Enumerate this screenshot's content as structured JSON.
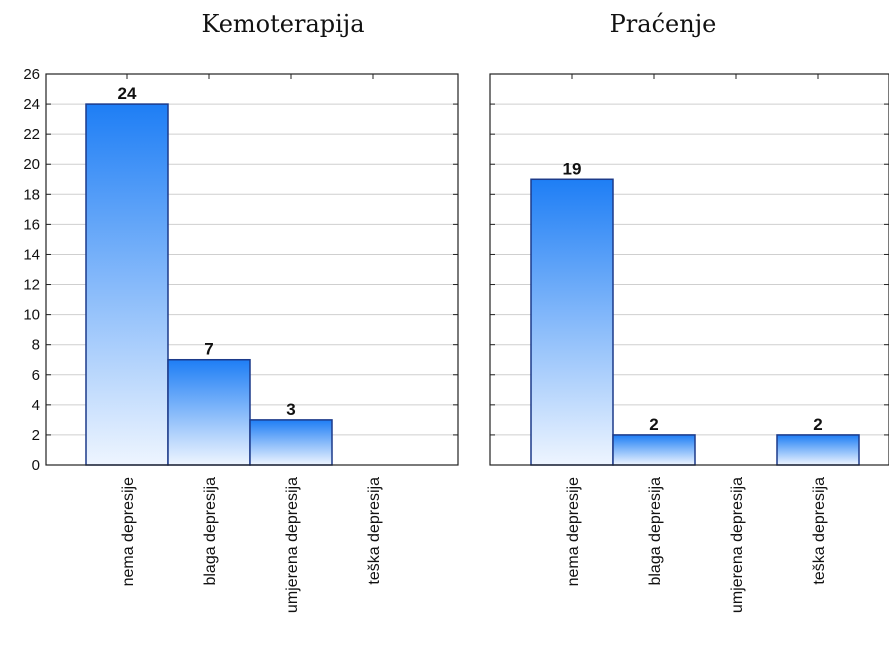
{
  "chart_data": [
    {
      "type": "bar",
      "title": "Kemoterapija",
      "categories": [
        "nema depresije",
        "blaga depresija",
        "umjerena depresija",
        "teška depresija"
      ],
      "values": [
        24,
        7,
        3,
        0
      ],
      "data_labels": [
        "24",
        "7",
        "3",
        ""
      ],
      "ylim": [
        0,
        26
      ],
      "yticks": [
        0,
        2,
        4,
        6,
        8,
        10,
        12,
        14,
        16,
        18,
        20,
        22,
        24,
        26
      ],
      "grid": true,
      "show_y_tick_labels": true
    },
    {
      "type": "bar",
      "title": "Praćenje",
      "categories": [
        "nema depresije",
        "blaga depresija",
        "umjerena depresija",
        "teška depresija"
      ],
      "values": [
        19,
        2,
        0,
        2
      ],
      "data_labels": [
        "19",
        "2",
        "",
        "2"
      ],
      "ylim": [
        0,
        26
      ],
      "yticks": [
        0,
        2,
        4,
        6,
        8,
        10,
        12,
        14,
        16,
        18,
        20,
        22,
        24,
        26
      ],
      "grid": true,
      "show_y_tick_labels": false
    }
  ],
  "colors": {
    "bar_top": "#1e7ef5",
    "bar_bottom": "#eef5ff",
    "bar_stroke": "#1c3a8a",
    "grid": "#cfcfcf",
    "frame": "#222222"
  }
}
